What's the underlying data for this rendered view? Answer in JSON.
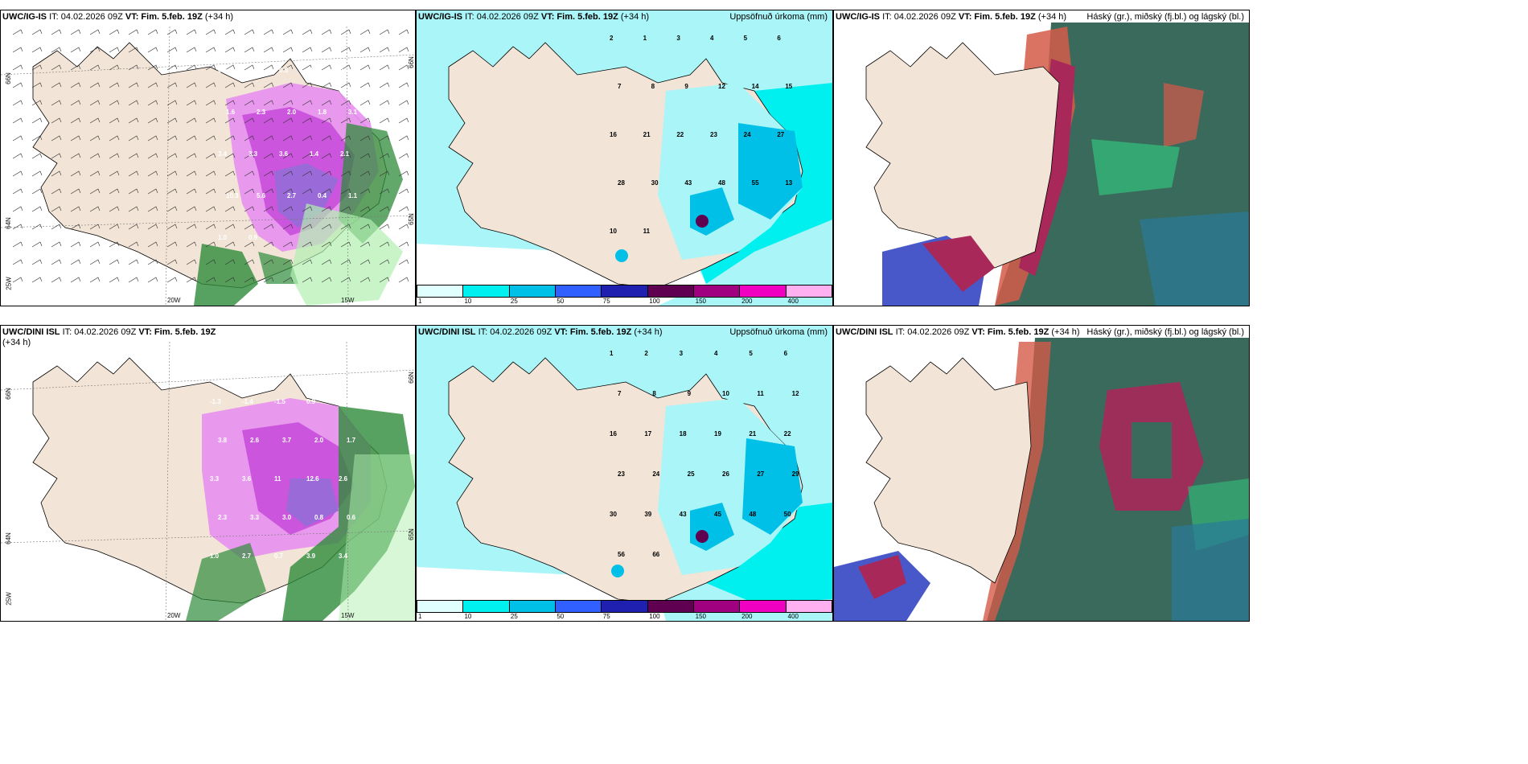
{
  "panels": [
    {
      "model": "UWC/IG-IS",
      "it": "IT: 04.02.2026 09Z",
      "vt": "VT: Fim. 5.feb. 19Z",
      "lead": "(+34 h)",
      "right_title": ""
    },
    {
      "model": "UWC/IG-IS",
      "it": "IT: 04.02.2026 09Z",
      "vt": "VT: Fim. 5.feb. 19Z",
      "lead": "(+34 h)",
      "right_title": "Uppsöfnuð úrkoma (mm)"
    },
    {
      "model": "UWC/IG-IS",
      "it": "IT: 04.02.2026 09Z",
      "vt": "VT: Fim. 5.feb. 19Z",
      "lead": "(+34 h)",
      "right_title": "Háský (gr.), miðský (fj.bl.) og lágský (bl.)"
    },
    {
      "model": "UWC/DINI ISL",
      "it": "IT: 04.02.2026 09Z",
      "vt": "VT: Fim. 5.feb. 19Z",
      "lead": "(+34",
      "lead2": "h)",
      "right_title": ""
    },
    {
      "model": "UWC/DINI ISL",
      "it": "IT: 04.02.2026 09Z",
      "vt": "VT: Fim. 5.feb. 19Z",
      "lead": "(+34 h)",
      "right_title": "Uppsöfnuð úrkoma (mm)"
    },
    {
      "model": "UWC/DINI ISL",
      "it": "IT: 04.02.2026 09Z",
      "vt": "VT: Fim. 5.feb. 19Z",
      "lead": "(+34 h)",
      "right_title": "Háský (gr.), miðský (fj.bl.) og lágský (bl.)"
    }
  ],
  "precip_legend": {
    "ticks": [
      "1",
      "10",
      "25",
      "50",
      "75",
      "100",
      "150",
      "200",
      "400"
    ],
    "colors": [
      "#e0ffff",
      "#00f0f0",
      "#00c0e8",
      "#3060ff",
      "#2020b0",
      "#600050",
      "#a00080",
      "#f000c0",
      "#ffb0f0"
    ]
  },
  "map_labels": {
    "lat66": "66N",
    "lat64": "64N",
    "lat65": "65N",
    "lon20": "20W",
    "lon15": "15W",
    "lon25": "25W"
  },
  "colors": {
    "land": "#f2e4d6",
    "sea_precip": "#aaf5f8",
    "sea_precip_heavy": "#00f0f0",
    "snow_purple": "#cc55dd",
    "snow_light": "#e890f0",
    "rain_green": "#2e8b3a",
    "rain_light": "#b0f0b0",
    "cloud_high": "#3a6a5c",
    "cloud_mid": "#a8285a",
    "cloud_low": "#4858c8"
  },
  "panel1_values": [
    "0.3",
    "0.6",
    "0.5",
    "1.1",
    "1.3",
    "1.6",
    "2.3",
    "2.0",
    "1.8",
    "3.1",
    "3.4",
    "3.3",
    "3.6",
    "1.4",
    "2.1",
    "10.3",
    "5.6",
    "2.7",
    "0.4",
    "1.1",
    "1.0",
    "0.9"
  ],
  "panel4_values": [
    "-1.3",
    "-1.4",
    "-1.5",
    "0.9",
    "1.0",
    "3.8",
    "2.6",
    "3.7",
    "2.0",
    "1.7",
    "3.3",
    "3.6",
    "11",
    "12.6",
    "2.6",
    "2.3",
    "3.3",
    "3.0",
    "0.8",
    "0.6",
    "1.0",
    "2.7",
    "0.7",
    "3.9",
    "3.4"
  ],
  "panel2_values": [
    "2",
    "1",
    "3",
    "4",
    "5",
    "6",
    "7",
    "8",
    "9",
    "12",
    "14",
    "15",
    "16",
    "21",
    "22",
    "23",
    "24",
    "27",
    "28",
    "30",
    "43",
    "48",
    "55",
    "13",
    "10",
    "11"
  ],
  "panel5_values": [
    "1",
    "2",
    "3",
    "4",
    "5",
    "6",
    "7",
    "8",
    "9",
    "10",
    "11",
    "12",
    "16",
    "17",
    "18",
    "19",
    "21",
    "22",
    "23",
    "24",
    "25",
    "26",
    "27",
    "29",
    "30",
    "39",
    "43",
    "45",
    "48",
    "50",
    "56",
    "66"
  ]
}
